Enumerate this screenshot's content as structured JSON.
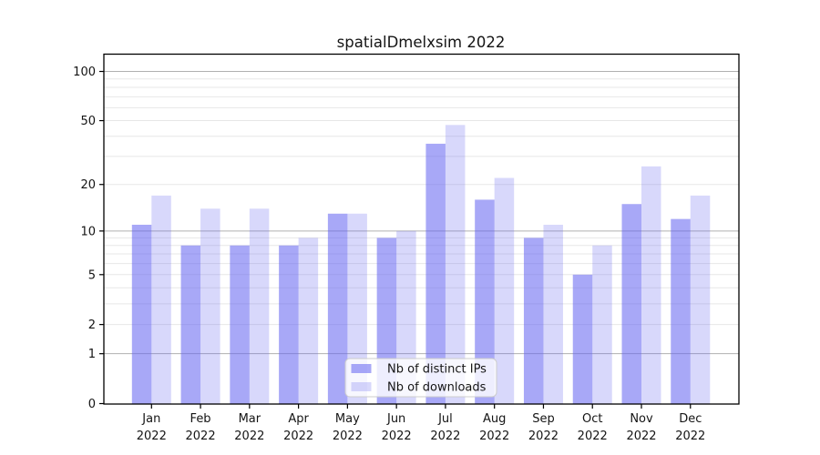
{
  "chart_data": {
    "type": "bar",
    "title": "spatialDmelxsim 2022",
    "categories": [
      "Jan",
      "Feb",
      "Mar",
      "Apr",
      "May",
      "Jun",
      "Jul",
      "Aug",
      "Sep",
      "Oct",
      "Nov",
      "Dec"
    ],
    "category_year": "2022",
    "series": [
      {
        "name": "Nb of distinct IPs",
        "values": [
          11,
          8,
          8,
          8,
          13,
          9,
          36,
          16,
          9,
          5,
          15,
          12
        ],
        "color": "#6464f0",
        "alpha": 0.56
      },
      {
        "name": "Nb of downloads",
        "values": [
          17,
          14,
          14,
          9,
          13,
          10,
          47,
          22,
          11,
          8,
          26,
          17
        ],
        "color": "#6464f0",
        "alpha": 0.25
      }
    ],
    "yscale": "log1p",
    "ylim": [
      0,
      127
    ],
    "y_major_ticks": [
      0,
      1,
      2,
      5,
      10,
      20,
      50,
      100
    ],
    "y_dark_gridlines": [
      1,
      10,
      100
    ],
    "y_light_gridlines": [
      2,
      3,
      4,
      5,
      6,
      7,
      8,
      9,
      20,
      30,
      40,
      50,
      60,
      70,
      80,
      90
    ],
    "grid": true,
    "legend_position": "lower center",
    "xlabel": "",
    "ylabel": ""
  },
  "colors": {
    "background": "#ffffff",
    "spine": "#000000",
    "text": "#141414",
    "grid_major": "#b0b0b0",
    "grid_minor": "#e7e7e7",
    "legend_bg": "rgba(255,255,255,0.8)",
    "legend_border": "#cccccc"
  }
}
